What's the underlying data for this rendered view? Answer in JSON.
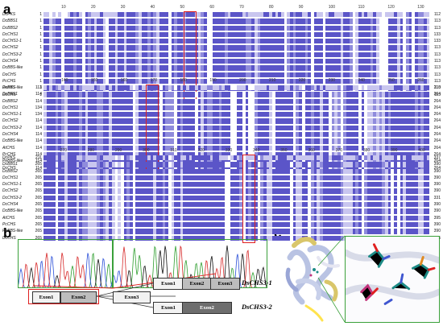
{
  "panels": {
    "a": "a",
    "b": "b",
    "c": "c"
  },
  "alignment": {
    "blocks": [
      {
        "ticks": [
          "10",
          "20",
          "30",
          "40",
          "50",
          "60",
          "70",
          "80",
          "90",
          "100",
          "110",
          "120",
          "130"
        ],
        "rows": [
          {
            "name": "DcPKS",
            "start": "1",
            "end": "112"
          },
          {
            "name": "DcBBS1",
            "start": "1",
            "end": "113"
          },
          {
            "name": "DcBBS2",
            "start": "1",
            "end": "113"
          },
          {
            "name": "DcCHS1",
            "start": "1",
            "end": "133"
          },
          {
            "name": "DcCHS1-1",
            "start": "1",
            "end": "133"
          },
          {
            "name": "DcCHS2",
            "start": "1",
            "end": "113"
          },
          {
            "name": "DcCHS3-2",
            "start": "1",
            "end": "113"
          },
          {
            "name": "DcCHS4",
            "start": "1",
            "end": "113"
          },
          {
            "name": "DcBBS-like",
            "start": "1",
            "end": "113"
          },
          {
            "name": "DoCHS",
            "start": "1",
            "end": "113"
          },
          {
            "name": "PcCHS",
            "start": "1",
            "end": "113"
          },
          {
            "name": "PeBBS-like",
            "start": "1",
            "end": "113"
          },
          {
            "name": "DcCHS",
            "start": "1",
            "end": "113"
          }
        ]
      },
      {
        "ticks": [
          "140",
          "150",
          "160",
          "170",
          "180",
          "190",
          "200",
          "210",
          "220",
          "230",
          "240",
          "250",
          "260"
        ],
        "rows": [
          {
            "name": "DcPKS",
            "start": "113",
            "end": "210"
          },
          {
            "name": "DcBBS1",
            "start": "114",
            "end": "264"
          },
          {
            "name": "DcBBS2",
            "start": "114",
            "end": "264"
          },
          {
            "name": "DcCHS1",
            "start": "134",
            "end": "264"
          },
          {
            "name": "DcCHS1-1",
            "start": "134",
            "end": "264"
          },
          {
            "name": "DcCHS2",
            "start": "114",
            "end": "264"
          },
          {
            "name": "DcCHS3-2",
            "start": "114",
            "end": "264"
          },
          {
            "name": "DcCHS4",
            "start": "114",
            "end": "264"
          },
          {
            "name": "DcBBS-like",
            "start": "114",
            "end": "264"
          },
          {
            "name": "AtCHS",
            "start": "114",
            "end": "264"
          },
          {
            "name": "PcCHS",
            "start": "114",
            "end": "264"
          },
          {
            "name": "PeBBS-like",
            "start": "114",
            "end": "264"
          },
          {
            "name": "DcCHS",
            "start": "114",
            "end": "264"
          }
        ]
      },
      {
        "ticks": [
          "270",
          "280",
          "290",
          "300",
          "310",
          "320",
          "330",
          "340",
          "350",
          "360",
          "370",
          "380",
          "390",
          "400"
        ],
        "rows": [
          {
            "name": "DcPKS",
            "start": "211",
            "end": "337"
          },
          {
            "name": "DcBBS1",
            "start": "265",
            "end": "390"
          },
          {
            "name": "DcBBS2",
            "start": "265",
            "end": "390"
          },
          {
            "name": "DcCHS1",
            "start": "265",
            "end": "390"
          },
          {
            "name": "DcCHS1-1",
            "start": "265",
            "end": "390"
          },
          {
            "name": "DcCHS2",
            "start": "265",
            "end": "390"
          },
          {
            "name": "DcCHS3-2",
            "start": "265",
            "end": "331"
          },
          {
            "name": "DcCHS4",
            "start": "265",
            "end": "390"
          },
          {
            "name": "DcBBS-like",
            "start": "265",
            "end": "390"
          },
          {
            "name": "AtCHS",
            "start": "265",
            "end": "395"
          },
          {
            "name": "PcCHS",
            "start": "265",
            "end": "390"
          },
          {
            "name": "PeBBS-like",
            "start": "265",
            "end": "390"
          },
          {
            "name": "DcCHS",
            "start": "265",
            "end": "395"
          }
        ]
      }
    ],
    "colors": {
      "identical": "#5b55c8",
      "strong": "#8f8bdc",
      "weak": "#c9c6ef",
      "none": "#ffffff",
      "highlight_box": "#e02020"
    }
  },
  "gene_model": {
    "exons": {
      "e1": "Exon1",
      "e2": "Exon2",
      "e3": "Exon3"
    },
    "isoforms": {
      "iso1": "DsCHS3-1",
      "iso2": "DsCHS3-2"
    },
    "colors": {
      "light": "#f2f2f2",
      "mid": "#bdbdbd",
      "dark": "#6e6e6e",
      "red": "#e02020",
      "green": "#3aa03a"
    }
  },
  "trace": {
    "colors": {
      "A": "#2e9e2e",
      "C": "#2a4fd8",
      "G": "#111111",
      "T": "#d62828"
    }
  },
  "structure": {
    "colors": {
      "helix_main": "#b9c3e3",
      "helix_alt": "#d9c66a",
      "highlight": "#ffe34d",
      "site_teal": "#1d8b86",
      "site_magenta": "#c2327a",
      "site_blue": "#3f56d0",
      "site_orange": "#e08a22",
      "zoom_border": "#3aa03a"
    }
  }
}
